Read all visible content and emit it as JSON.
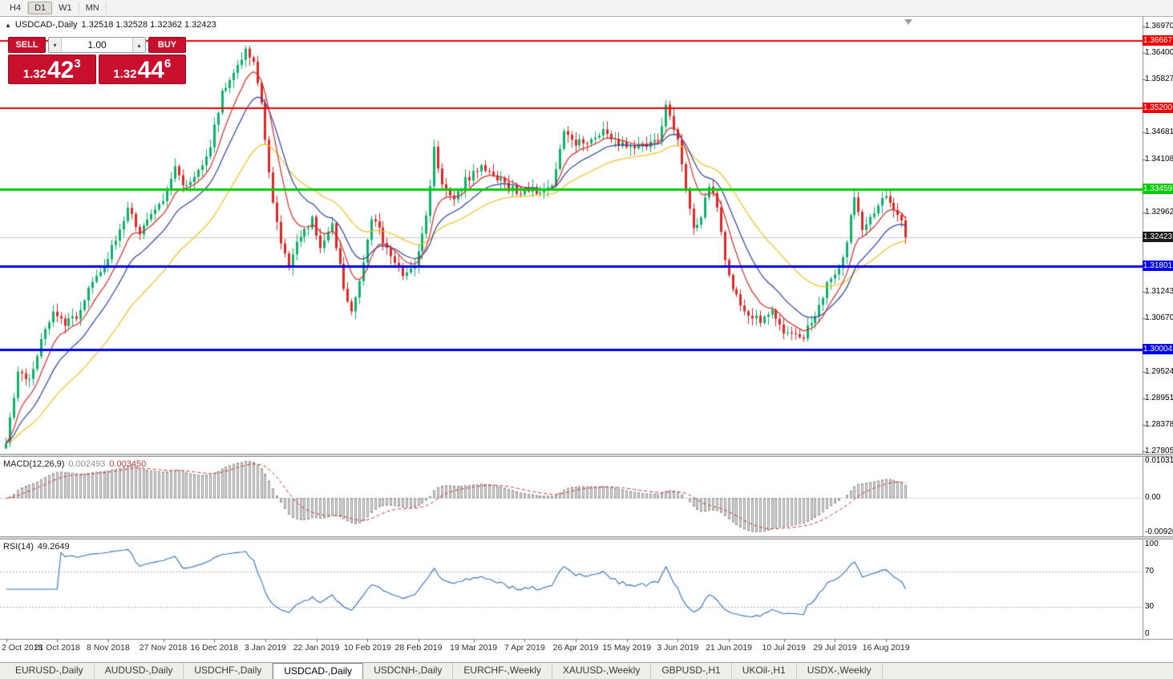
{
  "toolbar": {
    "timeframes": [
      {
        "label": "H4",
        "active": false
      },
      {
        "label": "D1",
        "active": true
      },
      {
        "label": "W1",
        "active": false
      },
      {
        "label": "MN",
        "active": false
      }
    ]
  },
  "chart_header": {
    "collapse_arrow": "▲",
    "title": "USDCAD-,Daily",
    "ohlc": "1.32518 1.32528 1.32362 1.32423"
  },
  "one_click": {
    "sell_label": "SELL",
    "buy_label": "BUY",
    "volume": "1.00",
    "volume_up_icon": "▴",
    "volume_down_icon": "▾",
    "sell_price": {
      "prefix": "1.32",
      "big": "42",
      "sup": "3"
    },
    "buy_price": {
      "prefix": "1.32",
      "big": "44",
      "sup": "6"
    }
  },
  "price_axis": {
    "ticks": [
      "1.36970",
      "1.36400",
      "1.35827",
      "1.35254",
      "1.34681",
      "1.34108",
      "1.33535",
      "1.32962",
      "1.32389",
      "1.31816",
      "1.31243",
      "1.30670",
      "1.30097",
      "1.29524",
      "1.28951",
      "1.28378",
      "1.27805"
    ]
  },
  "bid_label": "1.32423",
  "macd_panel": {
    "name": "MACD(12,26,9)",
    "value_main": "0.002493",
    "value_signal": "0.003450",
    "axis_max": "0.010311",
    "axis_zero": "0.00",
    "axis_min": "-0.009203"
  },
  "rsi_panel": {
    "name": "RSI(14)",
    "value": "49.2649",
    "axis": [
      "100",
      "70",
      "30",
      "0"
    ]
  },
  "time_axis": {
    "labels": [
      "2 Oct 2018",
      "21 Oct 2018",
      "8 Nov 2018",
      "27 Nov 2018",
      "16 Dec 2018",
      "3 Jan 2019",
      "22 Jan 2019",
      "10 Feb 2019",
      "28 Feb 2019",
      "19 Mar 2019",
      "7 Apr 2019",
      "26 Apr 2019",
      "15 May 2019",
      "3 Jun 2019",
      "21 Jun 2019",
      "10 Jul 2019",
      "29 Jul 2019",
      "16 Aug 2019"
    ]
  },
  "tabs": {
    "items": [
      "EURUSD-,Daily",
      "AUDUSD-,Daily",
      "USDCHF-,Daily",
      "USDCAD-,Daily",
      "USDCNH-,Daily",
      "EURCHF-,Weekly",
      "XAUUSD-,Weekly",
      "GBPUSD-,H1",
      "UKOil-,H1",
      "USDX-,Weekly"
    ],
    "active_index": 3
  },
  "colors": {
    "bull": "#0cb16a",
    "bear": "#e02626",
    "line_red": "#f20000",
    "line_green": "#00cc00",
    "line_blue": "#0000f2",
    "bid_line": "#c9c9c9",
    "bid_label_bg": "#1a1a1a",
    "macd_hist_fill": "#e3e3e3",
    "macd_hist_stroke": "#9b9b9b",
    "macd_signal": "#cc3333",
    "rsi_line": "#2f6fbd",
    "panel_red": "#c8102e"
  },
  "chart_data": {
    "type": "candlestick",
    "symbol": "USDCAD-",
    "timeframe": "Daily",
    "current_bar": {
      "open": 1.32518,
      "high": 1.32528,
      "low": 1.32362,
      "close": 1.32423
    },
    "bid": 1.32423,
    "ask": 1.32446,
    "y_axis_range": [
      1.27805,
      1.3697
    ],
    "num_candles": 230,
    "last_close": 1.32423,
    "horizontal_lines": [
      {
        "price": 1.36667,
        "label": "1.36667",
        "color": "#f20000",
        "width": 2
      },
      {
        "price": 1.352,
        "label": "1.35200",
        "color": "#f20000",
        "width": 2
      },
      {
        "price": 1.33459,
        "label": "1.33459",
        "color": "#00cc00",
        "width": 3
      },
      {
        "price": 1.31801,
        "label": "1.31801",
        "color": "#0000f2",
        "width": 3
      },
      {
        "price": 1.30004,
        "label": "1.30004",
        "color": "#0000f2",
        "width": 3
      }
    ],
    "moving_averages": [
      {
        "period": 8,
        "color": "#d62b2b"
      },
      {
        "period": 16,
        "color": "#2b3f9e"
      },
      {
        "period": 34,
        "color": "#f0c020"
      }
    ],
    "macd": {
      "fast": 12,
      "slow": 26,
      "signal": 9,
      "last_main": 0.002493,
      "last_signal": 0.00345,
      "axis_max": 0.010311,
      "axis_min": -0.009203
    },
    "rsi": {
      "period": 14,
      "last": 49.2649,
      "levels": [
        70,
        30
      ]
    },
    "price_waypoints": [
      [
        0,
        1.2805
      ],
      [
        3,
        1.295
      ],
      [
        6,
        1.293
      ],
      [
        9,
        1.302
      ],
      [
        12,
        1.309
      ],
      [
        15,
        1.306
      ],
      [
        19,
        1.308
      ],
      [
        22,
        1.3155
      ],
      [
        25,
        1.3185
      ],
      [
        28,
        1.3235
      ],
      [
        31,
        1.33
      ],
      [
        34,
        1.3255
      ],
      [
        37,
        1.3285
      ],
      [
        40,
        1.332
      ],
      [
        43,
        1.339
      ],
      [
        46,
        1.335
      ],
      [
        49,
        1.338
      ],
      [
        52,
        1.3445
      ],
      [
        55,
        1.355
      ],
      [
        58,
        1.359
      ],
      [
        61,
        1.3655
      ],
      [
        63,
        1.362
      ],
      [
        65,
        1.353
      ],
      [
        67,
        1.3375
      ],
      [
        70,
        1.322
      ],
      [
        72,
        1.3185
      ],
      [
        75,
        1.325
      ],
      [
        78,
        1.328
      ],
      [
        80,
        1.322
      ],
      [
        83,
        1.327
      ],
      [
        86,
        1.313
      ],
      [
        88,
        1.308
      ],
      [
        91,
        1.3185
      ],
      [
        93,
        1.3285
      ],
      [
        95,
        1.3255
      ],
      [
        98,
        1.32
      ],
      [
        101,
        1.3165
      ],
      [
        104,
        1.3185
      ],
      [
        107,
        1.329
      ],
      [
        109,
        1.343
      ],
      [
        111,
        1.3355
      ],
      [
        114,
        1.332
      ],
      [
        117,
        1.3365
      ],
      [
        121,
        1.339
      ],
      [
        124,
        1.338
      ],
      [
        127,
        1.3355
      ],
      [
        130,
        1.334
      ],
      [
        133,
        1.335
      ],
      [
        136,
        1.334
      ],
      [
        139,
        1.3355
      ],
      [
        142,
        1.348
      ],
      [
        145,
        1.3445
      ],
      [
        148,
        1.345
      ],
      [
        151,
        1.347
      ],
      [
        154,
        1.346
      ],
      [
        157,
        1.344
      ],
      [
        160,
        1.3435
      ],
      [
        163,
        1.3445
      ],
      [
        166,
        1.345
      ],
      [
        168,
        1.352
      ],
      [
        171,
        1.345
      ],
      [
        173,
        1.334
      ],
      [
        175,
        1.326
      ],
      [
        177,
        1.329
      ],
      [
        179,
        1.336
      ],
      [
        181,
        1.3305
      ],
      [
        183,
        1.3185
      ],
      [
        185,
        1.3125
      ],
      [
        187,
        1.31
      ],
      [
        189,
        1.307
      ],
      [
        192,
        1.3065
      ],
      [
        195,
        1.308
      ],
      [
        198,
        1.303
      ],
      [
        200,
        1.304
      ],
      [
        202,
        1.3018
      ],
      [
        204,
        1.3045
      ],
      [
        206,
        1.308
      ],
      [
        208,
        1.3115
      ],
      [
        210,
        1.316
      ],
      [
        212,
        1.3175
      ],
      [
        214,
        1.3235
      ],
      [
        216,
        1.3335
      ],
      [
        218,
        1.3255
      ],
      [
        220,
        1.329
      ],
      [
        222,
        1.331
      ],
      [
        224,
        1.333
      ],
      [
        226,
        1.3305
      ],
      [
        228,
        1.3285
      ],
      [
        229,
        1.32423
      ]
    ]
  }
}
